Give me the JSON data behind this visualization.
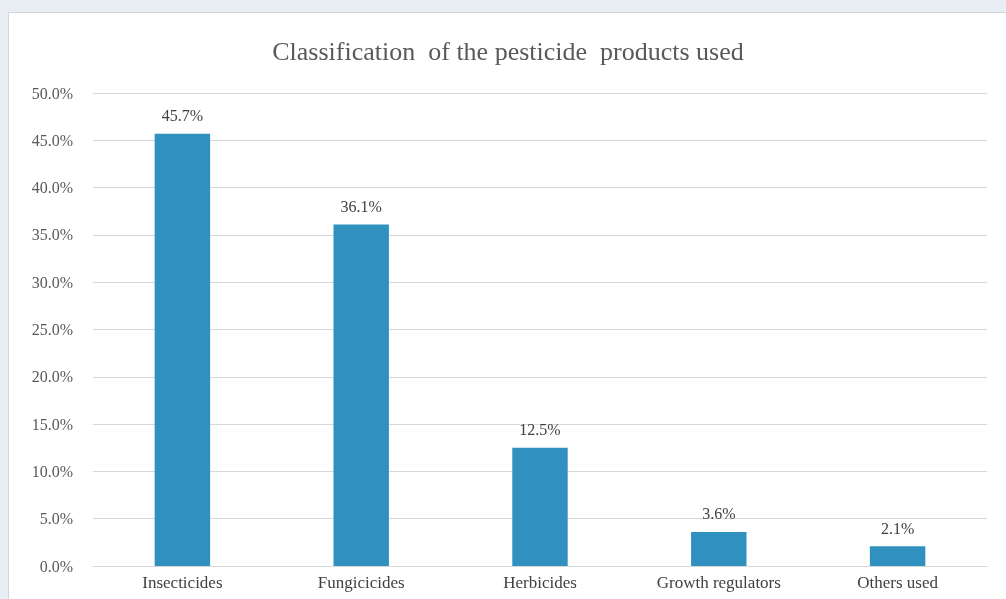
{
  "chart_data": {
    "type": "bar",
    "title": "Classification  of the pesticide  products used",
    "categories": [
      "Insecticides",
      "Fungicicides",
      "Herbicides",
      "Growth regulators",
      "Others used"
    ],
    "values": [
      45.7,
      36.1,
      12.5,
      3.6,
      2.1
    ],
    "value_labels": [
      "45.7%",
      "36.1%",
      "12.5%",
      "3.6%",
      "2.1%"
    ],
    "color": "#3091c0",
    "ylim": [
      0,
      50
    ],
    "yticks": [
      {
        "value": 0,
        "label": "0.0%"
      },
      {
        "value": 5,
        "label": "5.0%"
      },
      {
        "value": 10,
        "label": "10.0%"
      },
      {
        "value": 15,
        "label": "15.0%"
      },
      {
        "value": 20,
        "label": "20.0%"
      },
      {
        "value": 25,
        "label": "25.0%"
      },
      {
        "value": 30,
        "label": "30.0%"
      },
      {
        "value": 35,
        "label": "35.0%"
      },
      {
        "value": 40,
        "label": "40.0%"
      },
      {
        "value": 45,
        "label": "45.0%"
      },
      {
        "value": 50,
        "label": "50.0%"
      }
    ],
    "grid": "y"
  }
}
